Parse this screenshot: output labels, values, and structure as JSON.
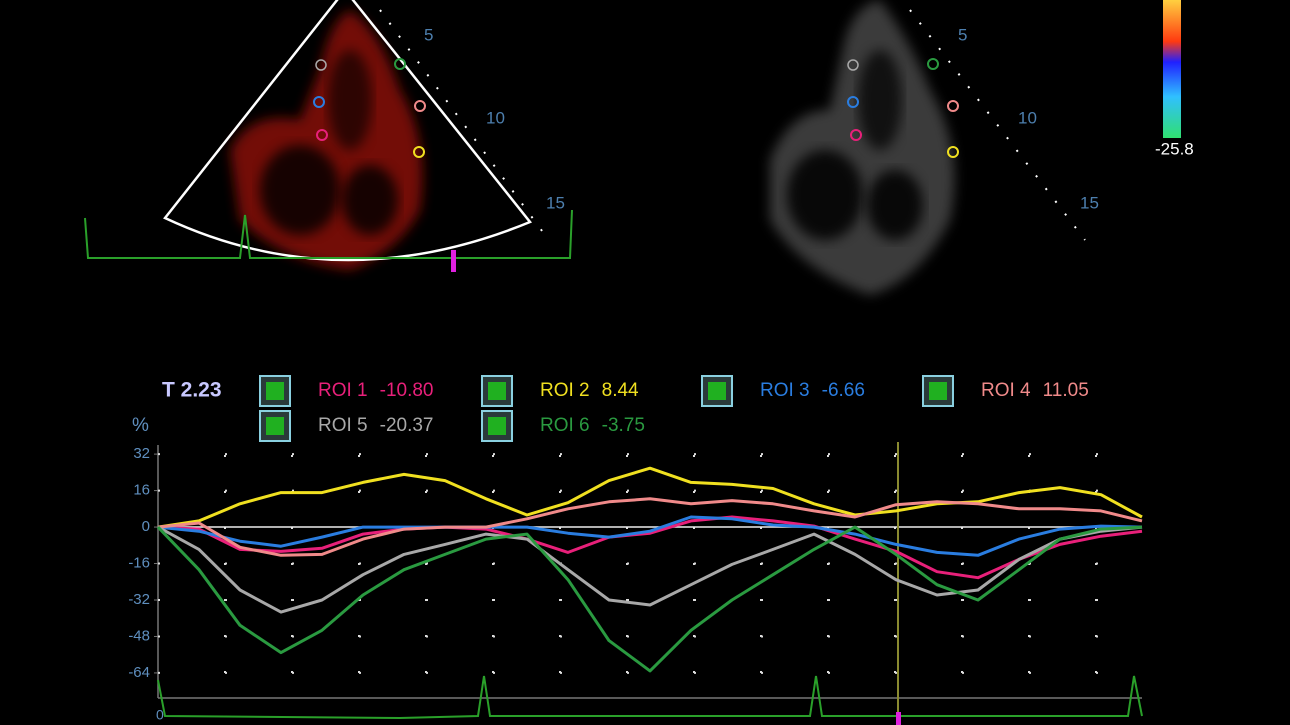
{
  "images": {
    "depth_left": [
      "5",
      "10",
      "15"
    ],
    "depth_right": [
      "5",
      "10",
      "15"
    ],
    "colorbar_min": "-25.8"
  },
  "chart_data": {
    "type": "line",
    "time_label": "T 2.23",
    "y_label": "%",
    "x_start_label": "0",
    "categories": [
      null,
      null,
      null,
      null,
      null,
      null,
      null,
      null,
      null,
      null,
      null,
      null,
      null,
      null,
      null,
      null,
      null,
      null,
      null,
      null,
      null,
      null,
      null,
      null,
      null
    ],
    "ylim": [
      -75,
      36
    ],
    "yticks": [
      32,
      16,
      0,
      -16,
      -32,
      -48,
      -64
    ],
    "grid": true,
    "series": [
      {
        "name": "ROI 1",
        "readout": "-10.80",
        "color": "#e8207a",
        "values": [
          0,
          -0.9,
          -9.8,
          -10.7,
          -9.3,
          -3.1,
          -0.9,
          0,
          -0.9,
          -5.3,
          -11.1,
          -4.4,
          -2.7,
          2.7,
          4.4,
          2.7,
          0.4,
          -5.3,
          -10.7,
          -19.6,
          -22.2,
          -14.2,
          -7.6,
          -4,
          -1.8
        ]
      },
      {
        "name": "ROI 2",
        "readout": "8.44",
        "color": "#f0e020",
        "values": [
          0,
          2.7,
          10.2,
          15.1,
          15.1,
          19.6,
          23.1,
          20.4,
          12.4,
          5.3,
          10.7,
          20.4,
          25.8,
          19.6,
          18.7,
          16.9,
          10.2,
          5.3,
          7.1,
          10.2,
          11.1,
          15.1,
          17.3,
          14.2,
          4.4
        ]
      },
      {
        "name": "ROI 3",
        "readout": "-6.66",
        "color": "#2a7de0",
        "values": [
          0,
          -1.8,
          -6.2,
          -8.4,
          -4.4,
          0,
          0,
          0,
          0,
          0,
          -2.7,
          -4.4,
          -1.8,
          4.4,
          3.6,
          0.9,
          0,
          -3.1,
          -7.6,
          -11.1,
          -12.4,
          -5.3,
          -0.9,
          0.4,
          0
        ]
      },
      {
        "name": "ROI 4",
        "readout": "11.05",
        "color": "#f08a8a",
        "values": [
          0,
          1.8,
          -8.9,
          -12.4,
          -12,
          -5.3,
          -0.9,
          0,
          0,
          3.6,
          8,
          11.1,
          12.4,
          10.2,
          11.6,
          10.2,
          7.1,
          4.4,
          9.8,
          11.1,
          10.2,
          8,
          8,
          7.1,
          2.7
        ]
      },
      {
        "name": "ROI 5",
        "readout": "-20.37",
        "color": "#a8a8a8",
        "values": [
          0,
          -9.8,
          -27.6,
          -37.3,
          -32,
          -20.9,
          -12,
          -7.6,
          -3.1,
          -5.3,
          -18.7,
          -32,
          -34.2,
          -25.3,
          -16.4,
          -9.8,
          -3.1,
          -12,
          -23.1,
          -29.8,
          -27.6,
          -14.2,
          -5.3,
          -1.8,
          0
        ]
      },
      {
        "name": "ROI 6",
        "readout": "-3.75",
        "color": "#2a9a40",
        "values": [
          0,
          -18.7,
          -43.1,
          -55.1,
          -45.3,
          -29.8,
          -18.7,
          -12,
          -5.3,
          -3.1,
          -23.1,
          -49.8,
          -63.1,
          -45.3,
          -32,
          -20.9,
          -9.8,
          0,
          -12,
          -25.3,
          -32,
          -18.7,
          -5.3,
          -0.9,
          0
        ]
      }
    ]
  }
}
